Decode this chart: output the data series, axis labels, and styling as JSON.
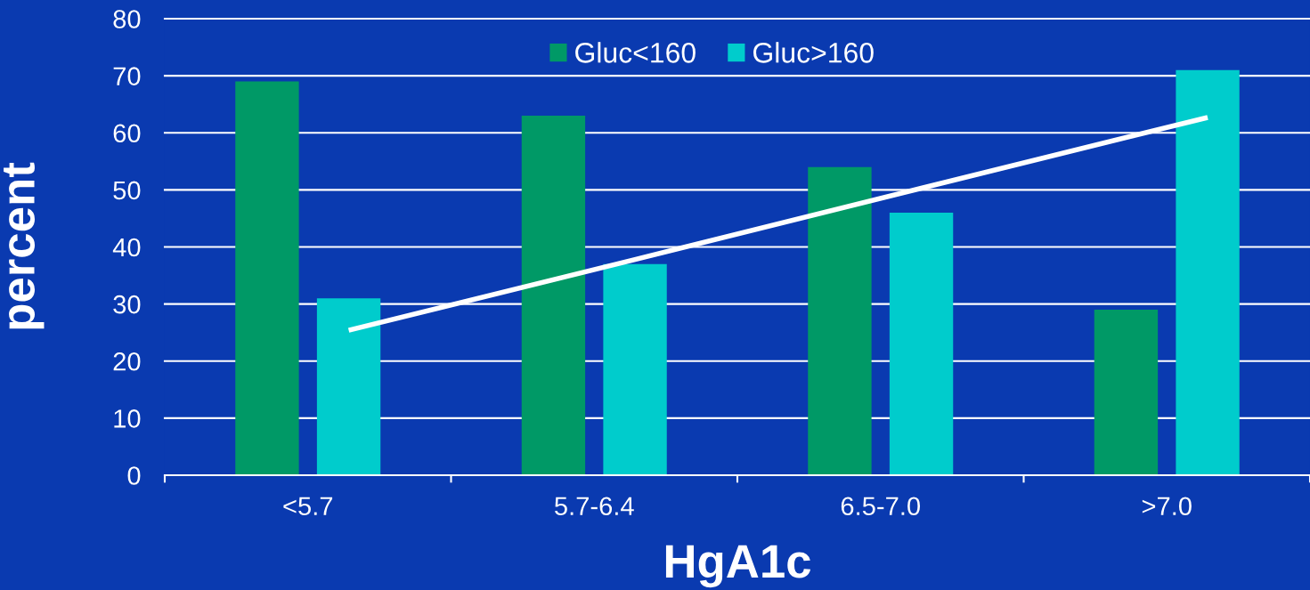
{
  "chart_data": {
    "type": "bar",
    "xlabel": "HgA1c",
    "ylabel": "percent",
    "categories": [
      "<5.7",
      "5.7-6.4",
      "6.5-7.0",
      ">7.0"
    ],
    "series": [
      {
        "name": "Gluc<160",
        "color": "#009966",
        "values": [
          69,
          63,
          54,
          29
        ]
      },
      {
        "name": "Gluc>160",
        "color": "#00cccc",
        "values": [
          31,
          37,
          46,
          71
        ]
      },
      {
        "type": "line",
        "color": "#ffffff",
        "values": [
          25.4,
          37.8,
          50.3,
          62.7
        ]
      }
    ],
    "ylim": [
      0,
      80
    ],
    "yticks": [
      0,
      10,
      20,
      30,
      40,
      50,
      60,
      70,
      80
    ],
    "grid": "y",
    "legend": "top"
  }
}
